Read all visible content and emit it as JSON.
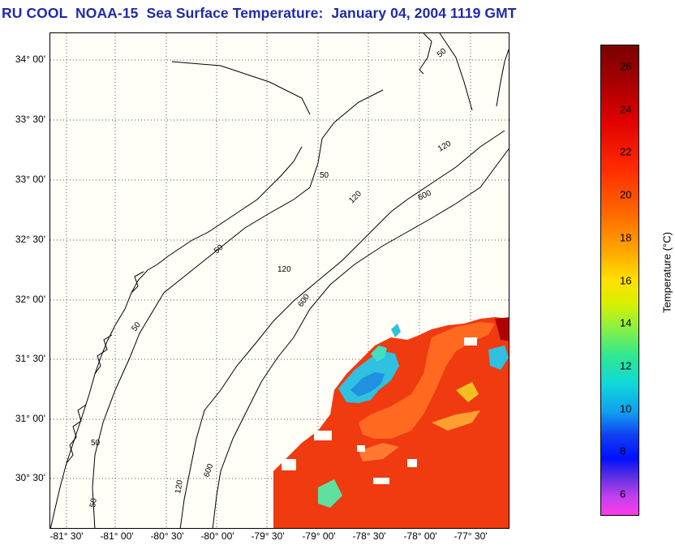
{
  "title": "RU COOL  NOAA-15  Sea Surface Temperature:  January 04, 2004 1119 GMT",
  "map": {
    "lat_labels": [
      "34° 00'",
      "33° 30'",
      "33° 00'",
      "32° 30'",
      "32° 00'",
      "31° 30'",
      "31° 00'",
      "30° 30'"
    ],
    "lon_labels": [
      "-81° 30'",
      "-81° 00'",
      "-80° 30'",
      "-80° 00'",
      "-79° 30'",
      "-79° 00'",
      "-78° 30'",
      "-78° 00'",
      "-77° 30'"
    ],
    "isobath_labels": [
      "50",
      "50",
      "50",
      "50",
      "50",
      "50",
      "120",
      "120",
      "120",
      "120",
      "600",
      "600",
      "600"
    ]
  },
  "colorbar": {
    "label": "Temperature (°C)",
    "ticks": [
      "26",
      "24",
      "22",
      "20",
      "18",
      "16",
      "14",
      "12",
      "10",
      "8",
      "6"
    ],
    "min": 5,
    "max": 27
  },
  "colors": {
    "title": "#1f2aa8",
    "warm_water": "#f03a10",
    "cool_water": "#30c0e0"
  }
}
